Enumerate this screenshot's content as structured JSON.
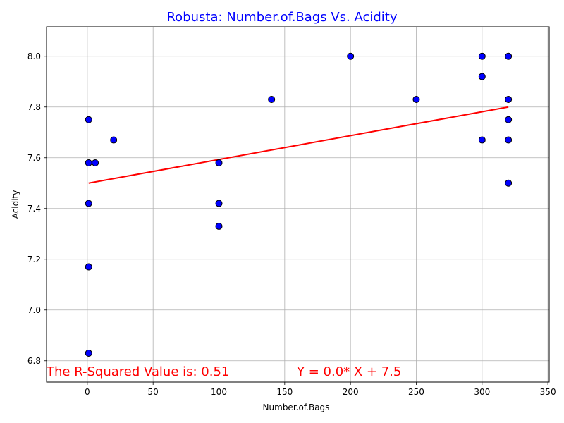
{
  "chart_data": {
    "type": "scatter",
    "title": "Robusta: Number.of.Bags Vs. Acidity",
    "xlabel": "Number.of.Bags",
    "ylabel": "Acidity",
    "xlim": [
      -31,
      351
    ],
    "ylim": [
      6.716,
      8.116
    ],
    "xticks": [
      0,
      50,
      100,
      150,
      200,
      250,
      300,
      350
    ],
    "yticks": [
      6.8,
      7.0,
      7.2,
      7.4,
      7.6,
      7.8,
      8.0
    ],
    "xtick_labels": [
      "0",
      "50",
      "100",
      "150",
      "200",
      "250",
      "300",
      "350"
    ],
    "ytick_labels": [
      "6.8",
      "7.0",
      "7.2",
      "7.4",
      "7.6",
      "7.8",
      "8.0"
    ],
    "grid": true,
    "colors": {
      "title": "#0000ff",
      "marker_fill": "#0000ff",
      "marker_edge": "#000000",
      "line": "#ff0000",
      "annotation": "#ff0000",
      "grid": "#b0b0b0"
    },
    "points": [
      {
        "x": 1,
        "y": 7.75
      },
      {
        "x": 1,
        "y": 7.58
      },
      {
        "x": 1,
        "y": 7.42
      },
      {
        "x": 1,
        "y": 7.17
      },
      {
        "x": 1,
        "y": 6.83
      },
      {
        "x": 6,
        "y": 7.58
      },
      {
        "x": 20,
        "y": 7.67
      },
      {
        "x": 100,
        "y": 7.58
      },
      {
        "x": 100,
        "y": 7.42
      },
      {
        "x": 100,
        "y": 7.33
      },
      {
        "x": 140,
        "y": 7.83
      },
      {
        "x": 200,
        "y": 8.0
      },
      {
        "x": 250,
        "y": 7.83
      },
      {
        "x": 300,
        "y": 8.0
      },
      {
        "x": 300,
        "y": 7.92
      },
      {
        "x": 300,
        "y": 7.67
      },
      {
        "x": 320,
        "y": 8.0
      },
      {
        "x": 320,
        "y": 7.83
      },
      {
        "x": 320,
        "y": 7.75
      },
      {
        "x": 320,
        "y": 7.67
      },
      {
        "x": 320,
        "y": 7.5
      }
    ],
    "regression_line": {
      "x": [
        1,
        320
      ],
      "y": [
        7.5,
        7.8
      ]
    },
    "annotations": {
      "r_squared": "The R-Squared Value is: 0.51",
      "equation": "Y = 0.0* X + 7.5"
    }
  }
}
